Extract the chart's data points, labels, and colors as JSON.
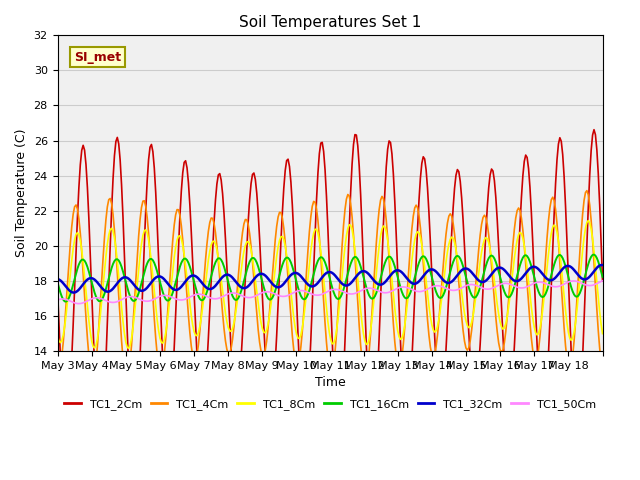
{
  "title": "Soil Temperatures Set 1",
  "xlabel": "Time",
  "ylabel": "Soil Temperature (C)",
  "ylim": [
    14,
    32
  ],
  "annotation_text": "SI_met",
  "annotation_bg": "#ffffcc",
  "annotation_border": "#999900",
  "annotation_text_color": "#990000",
  "x_tick_labels": [
    "May 3",
    "May 4",
    "May 5",
    "May 6",
    "May 7",
    "May 8",
    "May 9",
    "May 10",
    "May 11",
    "May 12",
    "May 13",
    "May 14",
    "May 15",
    "May 16",
    "May 17",
    "May 18"
  ],
  "series": {
    "TC1_2Cm": {
      "color": "#cc0000",
      "lw": 1.2
    },
    "TC1_4Cm": {
      "color": "#ff8800",
      "lw": 1.2
    },
    "TC1_8Cm": {
      "color": "#ffff00",
      "lw": 1.2
    },
    "TC1_16Cm": {
      "color": "#00cc00",
      "lw": 1.4
    },
    "TC1_32Cm": {
      "color": "#0000cc",
      "lw": 1.8
    },
    "TC1_50Cm": {
      "color": "#ff88ff",
      "lw": 1.2
    }
  },
  "legend_colors": [
    "#cc0000",
    "#ff8800",
    "#ffff00",
    "#00cc00",
    "#0000cc",
    "#ff88ff"
  ],
  "legend_labels": [
    "TC1_2Cm",
    "TC1_4Cm",
    "TC1_8Cm",
    "TC1_16Cm",
    "TC1_32Cm",
    "TC1_50Cm"
  ],
  "bg_color": "#e8e8e8",
  "plot_bg": "#f0f0f0"
}
